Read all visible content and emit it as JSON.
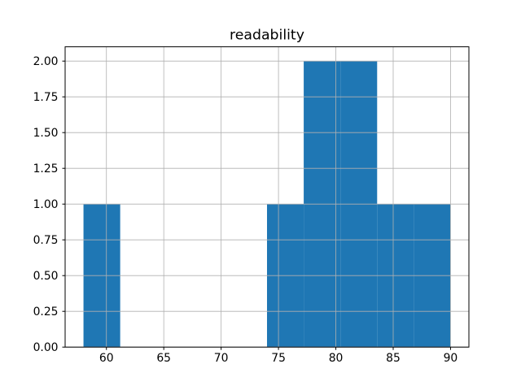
{
  "figure": {
    "background": "#ffffff"
  },
  "chart_data": {
    "type": "histogram",
    "title": "readability",
    "xlabel": "",
    "ylabel": "",
    "bin_edges": [
      58.0,
      61.2,
      64.4,
      67.6,
      70.8,
      74.0,
      77.2,
      80.4,
      83.6,
      86.8,
      90.0
    ],
    "counts": [
      1,
      0,
      0,
      0,
      0,
      1,
      2,
      2,
      1,
      1
    ],
    "xticks": [
      60,
      65,
      70,
      75,
      80,
      85,
      90
    ],
    "xtick_labels": [
      "60",
      "65",
      "70",
      "75",
      "80",
      "85",
      "90"
    ],
    "yticks": [
      0.0,
      0.25,
      0.5,
      0.75,
      1.0,
      1.25,
      1.5,
      1.75,
      2.0
    ],
    "ytick_labels": [
      "0.00",
      "0.25",
      "0.50",
      "0.75",
      "1.00",
      "1.25",
      "1.50",
      "1.75",
      "2.00"
    ],
    "xlim": [
      56.4,
      91.6
    ],
    "ylim": [
      0,
      2.1
    ],
    "grid": true,
    "grid_over_bars": true,
    "legend": null,
    "colors": {
      "bar": "#1f77b4",
      "grid": "#b0b0b0",
      "axes": "#000000",
      "text": "#000000",
      "background": "#ffffff"
    }
  }
}
